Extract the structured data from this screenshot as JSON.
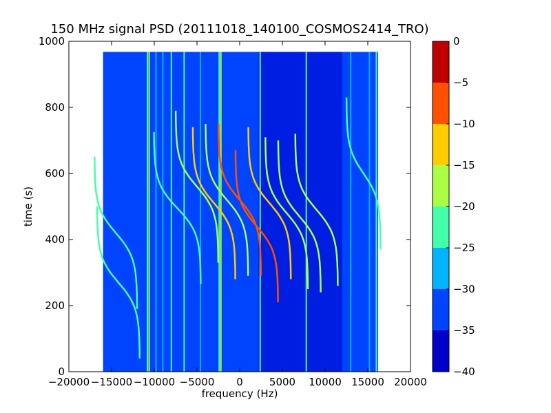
{
  "chart_data": {
    "type": "heatmap",
    "title": "150 MHz signal PSD (20111018_140100_COSMOS2414_TRO)",
    "xlabel": "frequency (Hz)",
    "ylabel": "time (s)",
    "xlim": [
      -20000,
      20000
    ],
    "ylim": [
      0,
      1000
    ],
    "x_ticks": [
      -20000,
      -15000,
      -10000,
      -5000,
      0,
      5000,
      10000,
      15000,
      20000
    ],
    "x_tick_labels": [
      "−20000",
      "−15000",
      "−10000",
      "−5000",
      "0",
      "5000",
      "10000",
      "15000",
      "20000"
    ],
    "y_ticks": [
      0,
      200,
      400,
      600,
      800,
      1000
    ],
    "y_tick_labels": [
      "0",
      "200",
      "400",
      "600",
      "800",
      "1000"
    ],
    "data_extent": {
      "freq_min": -16000,
      "freq_max": 16200,
      "time_min": 0,
      "time_max": 968
    },
    "background_level": -35,
    "grid": false,
    "colorbar": {
      "levels": [
        -40,
        -35,
        -30,
        -25,
        -20,
        -15,
        -10,
        -5,
        0
      ],
      "tick_labels": [
        "−40",
        "−35",
        "−30",
        "−25",
        "−20",
        "−15",
        "−10",
        "−5",
        "0"
      ],
      "colors": [
        "#0000c8",
        "#0044ff",
        "#00b4ff",
        "#44ffaa",
        "#aaff44",
        "#ffcc00",
        "#ff5000",
        "#c00000"
      ]
    },
    "vertical_lines": [
      {
        "freq": -10800,
        "level": -25
      },
      {
        "freq": -10600,
        "level": -20
      },
      {
        "freq": -9800,
        "level": -30
      },
      {
        "freq": -9000,
        "level": -30
      },
      {
        "freq": -8000,
        "level": -25
      },
      {
        "freq": -6500,
        "level": -25
      },
      {
        "freq": -4600,
        "level": -30
      },
      {
        "freq": -2400,
        "level": -25
      },
      {
        "freq": -2200,
        "level": -20
      },
      {
        "freq": 2400,
        "level": -25
      },
      {
        "freq": 7800,
        "level": -25
      },
      {
        "freq": 13000,
        "level": -30
      },
      {
        "freq": 15200,
        "level": -30
      },
      {
        "freq": 16000,
        "level": -25
      }
    ],
    "doppler_tracks": [
      {
        "freq_mid": -14200,
        "time_mid": 270,
        "span": 5000,
        "level": -25
      },
      {
        "freq_mid": -14500,
        "time_mid": 420,
        "span": 5000,
        "level": -25
      },
      {
        "freq_mid": -7300,
        "time_mid": 495,
        "span": 5500,
        "level": -25
      },
      {
        "freq_mid": -5000,
        "time_mid": 560,
        "span": 5000,
        "level": -20
      },
      {
        "freq_mid": -3000,
        "time_mid": 510,
        "span": 5000,
        "level": -15
      },
      {
        "freq_mid": -1500,
        "time_mid": 520,
        "span": 5000,
        "level": -20
      },
      {
        "freq_mid": 0,
        "time_mid": 520,
        "span": 5000,
        "level": -10
      },
      {
        "freq_mid": 2000,
        "time_mid": 440,
        "span": 5000,
        "level": -10
      },
      {
        "freq_mid": 3500,
        "time_mid": 510,
        "span": 5000,
        "level": -15
      },
      {
        "freq_mid": 5500,
        "time_mid": 480,
        "span": 5000,
        "level": -20
      },
      {
        "freq_mid": 7000,
        "time_mid": 470,
        "span": 5000,
        "level": -20
      },
      {
        "freq_mid": 9000,
        "time_mid": 490,
        "span": 5000,
        "level": -20
      },
      {
        "freq_mid": 14500,
        "time_mid": 600,
        "span": 4000,
        "level": -25
      }
    ]
  }
}
